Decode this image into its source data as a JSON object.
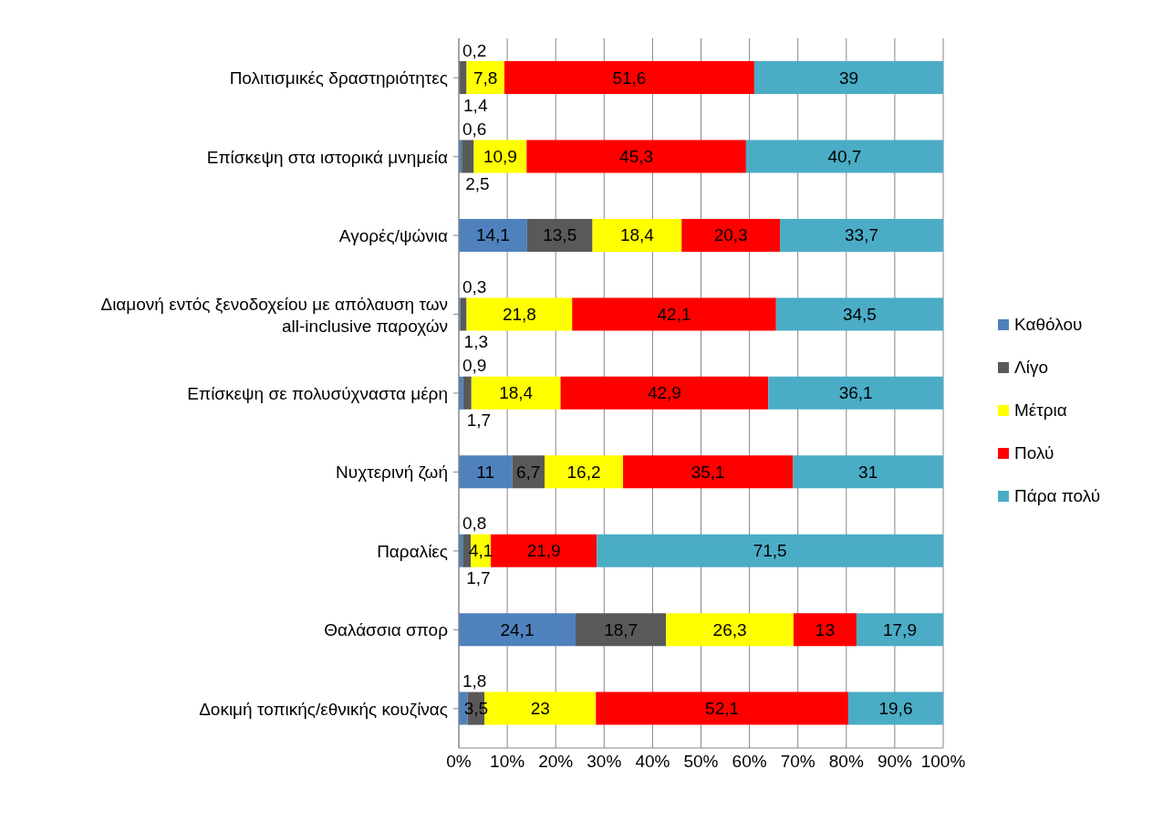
{
  "chart_data": {
    "type": "bar",
    "orientation": "horizontal",
    "stacked": true,
    "grid": "x",
    "legend": "right",
    "categories": [
      "Πολιτισμικές δραστηριότητες",
      "Επίσκεψη στα ιστορικά μνημεία",
      "Αγορές/ψώνια",
      "Διαμονή εντός ξενοδοχείου με απόλαυση των all-inclusive παροχών",
      "Επίσκεψη σε πολυσύχναστα μέρη",
      "Νυχτερινή ζωή",
      "Παραλίες",
      "Θαλάσσια σπορ",
      "Δοκιμή τοπικής/εθνικής κουζίνας"
    ],
    "series": [
      {
        "name": "Καθόλου",
        "color": "#4f81bd",
        "values": [
          0.2,
          0.6,
          14.1,
          0.3,
          0.9,
          11,
          0.8,
          24.1,
          1.8
        ],
        "value_labels": [
          "0,2",
          "0,6",
          "14,1",
          "0,3",
          "0,9",
          "11",
          "0,8",
          "24,1",
          "1,8"
        ]
      },
      {
        "name": "Λίγο",
        "color": "#595959",
        "values": [
          1.4,
          2.5,
          13.5,
          1.3,
          1.7,
          6.7,
          1.7,
          18.7,
          3.5
        ],
        "value_labels": [
          "1,4",
          "2,5",
          "13,5",
          "1,3",
          "1,7",
          "6,7",
          "1,7",
          "18,7",
          "3,5"
        ]
      },
      {
        "name": "Μέτρια",
        "color": "#ffff00",
        "values": [
          7.8,
          10.9,
          18.4,
          21.8,
          18.4,
          16.2,
          4.1,
          26.3,
          23
        ],
        "value_labels": [
          "7,8",
          "10,9",
          "18,4",
          "21,8",
          "18,4",
          "16,2",
          "4,1",
          "26,3",
          "23"
        ]
      },
      {
        "name": "Πολύ",
        "color": "#ff0000",
        "values": [
          51.6,
          45.3,
          20.3,
          42.1,
          42.9,
          35.1,
          21.9,
          13,
          52.1
        ],
        "value_labels": [
          "51,6",
          "45,3",
          "20,3",
          "42,1",
          "42,9",
          "35,1",
          "21,9",
          "13",
          "52,1"
        ]
      },
      {
        "name": "Πάρα πολύ",
        "color": "#4bacc6",
        "values": [
          39,
          40.7,
          33.7,
          34.5,
          36.1,
          31,
          71.5,
          17.9,
          19.6
        ],
        "value_labels": [
          "39",
          "40,7",
          "33,7",
          "34,5",
          "36,1",
          "31",
          "71,5",
          "17,9",
          "19,6"
        ]
      }
    ],
    "xlim": [
      0,
      100
    ],
    "xticks": [
      {
        "value": 0,
        "label": "0%"
      },
      {
        "value": 10,
        "label": "10%"
      },
      {
        "value": 20,
        "label": "20%"
      },
      {
        "value": 30,
        "label": "30%"
      },
      {
        "value": 40,
        "label": "40%"
      },
      {
        "value": 50,
        "label": "50%"
      },
      {
        "value": 60,
        "label": "60%"
      },
      {
        "value": 70,
        "label": "70%"
      },
      {
        "value": 80,
        "label": "80%"
      },
      {
        "value": 90,
        "label": "90%"
      },
      {
        "value": 100,
        "label": "100%"
      }
    ]
  }
}
